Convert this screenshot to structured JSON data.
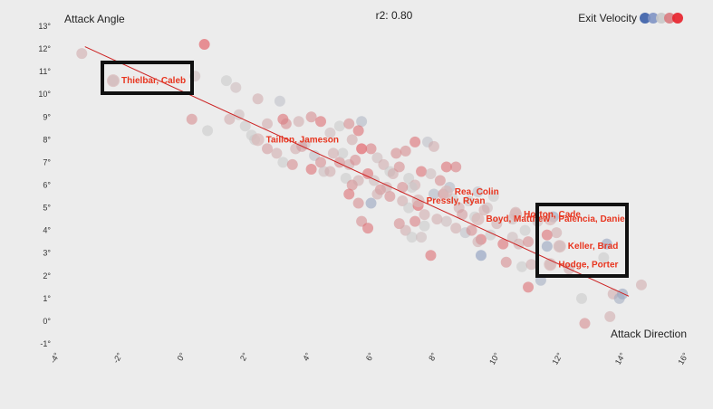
{
  "chart_data": {
    "type": "scatter",
    "title": "r2: 0.80",
    "xlabel": "Attack Direction",
    "ylabel": "Attack Angle",
    "xlim": [
      -4,
      16
    ],
    "ylim": [
      -1,
      13
    ],
    "x_ticks": [
      "-4°",
      "-2°",
      "0°",
      "2°",
      "4°",
      "6°",
      "8°",
      "10°",
      "12°",
      "14°",
      "16°"
    ],
    "y_ticks": [
      "-1°",
      "0°",
      "1°",
      "2°",
      "3°",
      "4°",
      "5°",
      "6°",
      "7°",
      "8°",
      "9°",
      "10°",
      "11°",
      "12°",
      "13°"
    ],
    "grid": false,
    "legend": {
      "title": "Exit Velocity",
      "placement": "top-right",
      "colors": [
        "#3b5fa8",
        "#7f93c4",
        "#c9c9c9",
        "#d97b80",
        "#e8202a"
      ]
    },
    "trendline": {
      "x": [
        -3.2,
        14.1
      ],
      "y": [
        12.1,
        1.1
      ],
      "color": "#cc2222"
    },
    "labeled_points": [
      {
        "name": "Thielbar, Caleb",
        "x": -2.3,
        "y": 10.6
      },
      {
        "name": "Taillon, Jameson",
        "x": 2.3,
        "y": 8.0
      },
      {
        "name": "Rea, Colin",
        "x": 8.3,
        "y": 5.7
      },
      {
        "name": "Pressly, Ryan",
        "x": 7.4,
        "y": 5.3
      },
      {
        "name": "Horton, Cade",
        "x": 10.5,
        "y": 4.7
      },
      {
        "name": "Boyd, Matthew",
        "x": 9.3,
        "y": 4.5
      },
      {
        "name": "Palencia, Daniel",
        "x": 11.6,
        "y": 4.5
      },
      {
        "name": "Keller, Brad",
        "x": 11.9,
        "y": 3.3
      },
      {
        "name": "Hodge, Porter",
        "x": 11.6,
        "y": 2.5
      }
    ],
    "points": [
      {
        "x": -3.3,
        "y": 11.8,
        "c": 0.6
      },
      {
        "x": -2.3,
        "y": 10.6,
        "c": 0.45
      },
      {
        "x": 0.6,
        "y": 12.2,
        "c": 0.9
      },
      {
        "x": 0.3,
        "y": 10.8,
        "c": 0.55
      },
      {
        "x": 1.3,
        "y": 10.6,
        "c": 0.5
      },
      {
        "x": 1.6,
        "y": 10.3,
        "c": 0.55
      },
      {
        "x": 2.3,
        "y": 9.8,
        "c": 0.6
      },
      {
        "x": 3.0,
        "y": 9.7,
        "c": 0.45
      },
      {
        "x": 0.2,
        "y": 8.9,
        "c": 0.7
      },
      {
        "x": 0.7,
        "y": 8.4,
        "c": 0.5
      },
      {
        "x": 1.4,
        "y": 8.9,
        "c": 0.6
      },
      {
        "x": 1.7,
        "y": 9.1,
        "c": 0.55
      },
      {
        "x": 1.9,
        "y": 8.6,
        "c": 0.5
      },
      {
        "x": 2.1,
        "y": 8.2,
        "c": 0.5
      },
      {
        "x": 2.6,
        "y": 8.7,
        "c": 0.6
      },
      {
        "x": 3.1,
        "y": 8.9,
        "c": 0.8
      },
      {
        "x": 3.2,
        "y": 8.7,
        "c": 0.7
      },
      {
        "x": 3.6,
        "y": 8.8,
        "c": 0.6
      },
      {
        "x": 4.0,
        "y": 9.0,
        "c": 0.7
      },
      {
        "x": 4.3,
        "y": 8.8,
        "c": 0.8
      },
      {
        "x": 4.6,
        "y": 8.3,
        "c": 0.55
      },
      {
        "x": 4.9,
        "y": 8.6,
        "c": 0.5
      },
      {
        "x": 5.2,
        "y": 8.7,
        "c": 0.7
      },
      {
        "x": 5.6,
        "y": 8.8,
        "c": 0.4
      },
      {
        "x": 5.5,
        "y": 8.4,
        "c": 0.8
      },
      {
        "x": 5.3,
        "y": 8.0,
        "c": 0.6
      },
      {
        "x": 2.6,
        "y": 7.6,
        "c": 0.65
      },
      {
        "x": 2.9,
        "y": 7.4,
        "c": 0.6
      },
      {
        "x": 3.1,
        "y": 7.0,
        "c": 0.5
      },
      {
        "x": 3.4,
        "y": 6.9,
        "c": 0.7
      },
      {
        "x": 3.5,
        "y": 7.6,
        "c": 0.6
      },
      {
        "x": 3.8,
        "y": 7.8,
        "c": 0.55
      },
      {
        "x": 4.1,
        "y": 7.3,
        "c": 0.45
      },
      {
        "x": 4.3,
        "y": 7.0,
        "c": 0.7
      },
      {
        "x": 4.4,
        "y": 6.6,
        "c": 0.55
      },
      {
        "x": 4.0,
        "y": 6.7,
        "c": 0.8
      },
      {
        "x": 4.6,
        "y": 6.6,
        "c": 0.6
      },
      {
        "x": 4.9,
        "y": 7.0,
        "c": 0.7
      },
      {
        "x": 5.0,
        "y": 7.4,
        "c": 0.5
      },
      {
        "x": 5.2,
        "y": 6.9,
        "c": 0.6
      },
      {
        "x": 5.4,
        "y": 7.1,
        "c": 0.7
      },
      {
        "x": 5.6,
        "y": 7.6,
        "c": 0.9
      },
      {
        "x": 5.9,
        "y": 7.6,
        "c": 0.75
      },
      {
        "x": 6.1,
        "y": 7.2,
        "c": 0.55
      },
      {
        "x": 6.3,
        "y": 6.9,
        "c": 0.6
      },
      {
        "x": 6.5,
        "y": 6.6,
        "c": 0.5
      },
      {
        "x": 6.7,
        "y": 7.4,
        "c": 0.7
      },
      {
        "x": 7.0,
        "y": 7.5,
        "c": 0.7
      },
      {
        "x": 7.3,
        "y": 7.9,
        "c": 0.8
      },
      {
        "x": 7.7,
        "y": 7.9,
        "c": 0.45
      },
      {
        "x": 7.9,
        "y": 7.7,
        "c": 0.6
      },
      {
        "x": 5.1,
        "y": 6.3,
        "c": 0.5
      },
      {
        "x": 5.3,
        "y": 6.0,
        "c": 0.7
      },
      {
        "x": 5.5,
        "y": 6.2,
        "c": 0.6
      },
      {
        "x": 5.8,
        "y": 6.5,
        "c": 0.8
      },
      {
        "x": 6.0,
        "y": 6.2,
        "c": 0.55
      },
      {
        "x": 6.2,
        "y": 5.8,
        "c": 0.7
      },
      {
        "x": 6.6,
        "y": 6.5,
        "c": 0.6
      },
      {
        "x": 6.8,
        "y": 6.8,
        "c": 0.7
      },
      {
        "x": 7.1,
        "y": 6.3,
        "c": 0.5
      },
      {
        "x": 7.3,
        "y": 6.0,
        "c": 0.6
      },
      {
        "x": 7.5,
        "y": 6.6,
        "c": 0.8
      },
      {
        "x": 7.8,
        "y": 6.5,
        "c": 0.55
      },
      {
        "x": 8.1,
        "y": 6.2,
        "c": 0.7
      },
      {
        "x": 8.3,
        "y": 6.8,
        "c": 0.8
      },
      {
        "x": 8.6,
        "y": 6.8,
        "c": 0.75
      },
      {
        "x": 5.2,
        "y": 5.6,
        "c": 0.8
      },
      {
        "x": 5.5,
        "y": 5.2,
        "c": 0.7
      },
      {
        "x": 5.9,
        "y": 5.2,
        "c": 0.3
      },
      {
        "x": 6.1,
        "y": 5.6,
        "c": 0.6
      },
      {
        "x": 6.5,
        "y": 5.5,
        "c": 0.7
      },
      {
        "x": 6.9,
        "y": 5.3,
        "c": 0.6
      },
      {
        "x": 7.1,
        "y": 5.0,
        "c": 0.5
      },
      {
        "x": 7.4,
        "y": 5.1,
        "c": 0.85
      },
      {
        "x": 7.6,
        "y": 4.7,
        "c": 0.6
      },
      {
        "x": 7.9,
        "y": 5.6,
        "c": 0.4
      },
      {
        "x": 8.2,
        "y": 5.6,
        "c": 0.7
      },
      {
        "x": 8.5,
        "y": 5.4,
        "c": 0.5
      },
      {
        "x": 8.7,
        "y": 5.0,
        "c": 0.6
      },
      {
        "x": 9.0,
        "y": 5.3,
        "c": 0.5
      },
      {
        "x": 9.3,
        "y": 5.7,
        "c": 0.45
      },
      {
        "x": 9.6,
        "y": 5.0,
        "c": 0.55
      },
      {
        "x": 5.6,
        "y": 4.4,
        "c": 0.7
      },
      {
        "x": 5.8,
        "y": 4.1,
        "c": 0.8
      },
      {
        "x": 6.8,
        "y": 4.3,
        "c": 0.7
      },
      {
        "x": 7.0,
        "y": 4.0,
        "c": 0.6
      },
      {
        "x": 7.3,
        "y": 4.4,
        "c": 0.75
      },
      {
        "x": 7.6,
        "y": 4.2,
        "c": 0.5
      },
      {
        "x": 8.0,
        "y": 4.5,
        "c": 0.6
      },
      {
        "x": 8.3,
        "y": 4.4,
        "c": 0.55
      },
      {
        "x": 8.6,
        "y": 4.1,
        "c": 0.6
      },
      {
        "x": 8.9,
        "y": 3.9,
        "c": 0.45
      },
      {
        "x": 9.1,
        "y": 4.0,
        "c": 0.7
      },
      {
        "x": 9.4,
        "y": 3.6,
        "c": 0.8
      },
      {
        "x": 9.7,
        "y": 3.8,
        "c": 0.5
      },
      {
        "x": 9.9,
        "y": 4.3,
        "c": 0.6
      },
      {
        "x": 7.2,
        "y": 3.7,
        "c": 0.5
      },
      {
        "x": 7.5,
        "y": 3.7,
        "c": 0.55
      },
      {
        "x": 7.8,
        "y": 2.9,
        "c": 0.8
      },
      {
        "x": 9.3,
        "y": 3.5,
        "c": 0.6
      },
      {
        "x": 9.4,
        "y": 2.9,
        "c": 0.25
      },
      {
        "x": 10.1,
        "y": 3.4,
        "c": 0.8
      },
      {
        "x": 10.4,
        "y": 3.7,
        "c": 0.55
      },
      {
        "x": 10.6,
        "y": 3.4,
        "c": 0.6
      },
      {
        "x": 10.9,
        "y": 3.5,
        "c": 0.7
      },
      {
        "x": 10.2,
        "y": 2.6,
        "c": 0.7
      },
      {
        "x": 10.7,
        "y": 2.4,
        "c": 0.5
      },
      {
        "x": 11.0,
        "y": 2.5,
        "c": 0.6
      },
      {
        "x": 11.3,
        "y": 1.8,
        "c": 0.35
      },
      {
        "x": 11.5,
        "y": 3.3,
        "c": 0.3
      },
      {
        "x": 11.9,
        "y": 3.3,
        "c": 0.45
      },
      {
        "x": 11.6,
        "y": 2.5,
        "c": 0.55
      },
      {
        "x": 12.2,
        "y": 2.3,
        "c": 0.6
      },
      {
        "x": 10.9,
        "y": 1.5,
        "c": 0.8
      },
      {
        "x": 12.6,
        "y": 1.0,
        "c": 0.5
      },
      {
        "x": 12.7,
        "y": -0.1,
        "c": 0.7
      },
      {
        "x": 13.4,
        "y": 3.4,
        "c": 0.3
      },
      {
        "x": 13.3,
        "y": 2.8,
        "c": 0.5
      },
      {
        "x": 13.6,
        "y": 1.2,
        "c": 0.6
      },
      {
        "x": 13.9,
        "y": 1.2,
        "c": 0.3
      },
      {
        "x": 13.8,
        "y": 1.0,
        "c": 0.35
      },
      {
        "x": 14.5,
        "y": 1.6,
        "c": 0.6
      },
      {
        "x": 13.5,
        "y": 0.2,
        "c": 0.6
      },
      {
        "x": 11.2,
        "y": 4.4,
        "c": 0.55
      },
      {
        "x": 11.7,
        "y": 4.6,
        "c": 0.3
      },
      {
        "x": 11.5,
        "y": 3.8,
        "c": 0.8
      },
      {
        "x": 10.8,
        "y": 4.0,
        "c": 0.5
      },
      {
        "x": 10.4,
        "y": 4.5,
        "c": 0.55
      },
      {
        "x": 9.5,
        "y": 4.9,
        "c": 0.6
      },
      {
        "x": 9.2,
        "y": 4.6,
        "c": 0.5
      },
      {
        "x": 8.8,
        "y": 4.7,
        "c": 0.65
      },
      {
        "x": 7.2,
        "y": 5.9,
        "c": 0.5
      },
      {
        "x": 6.4,
        "y": 5.9,
        "c": 0.6
      },
      {
        "x": 4.7,
        "y": 7.4,
        "c": 0.6
      },
      {
        "x": 3.7,
        "y": 7.7,
        "c": 0.65
      },
      {
        "x": 2.2,
        "y": 8.0,
        "c": 0.5
      },
      {
        "x": 6.9,
        "y": 5.9,
        "c": 0.7
      },
      {
        "x": 8.4,
        "y": 5.9,
        "c": 0.4
      },
      {
        "x": 9.8,
        "y": 5.5,
        "c": 0.5
      },
      {
        "x": 10.5,
        "y": 4.8,
        "c": 0.6
      },
      {
        "x": 11.8,
        "y": 3.9,
        "c": 0.6
      }
    ]
  }
}
